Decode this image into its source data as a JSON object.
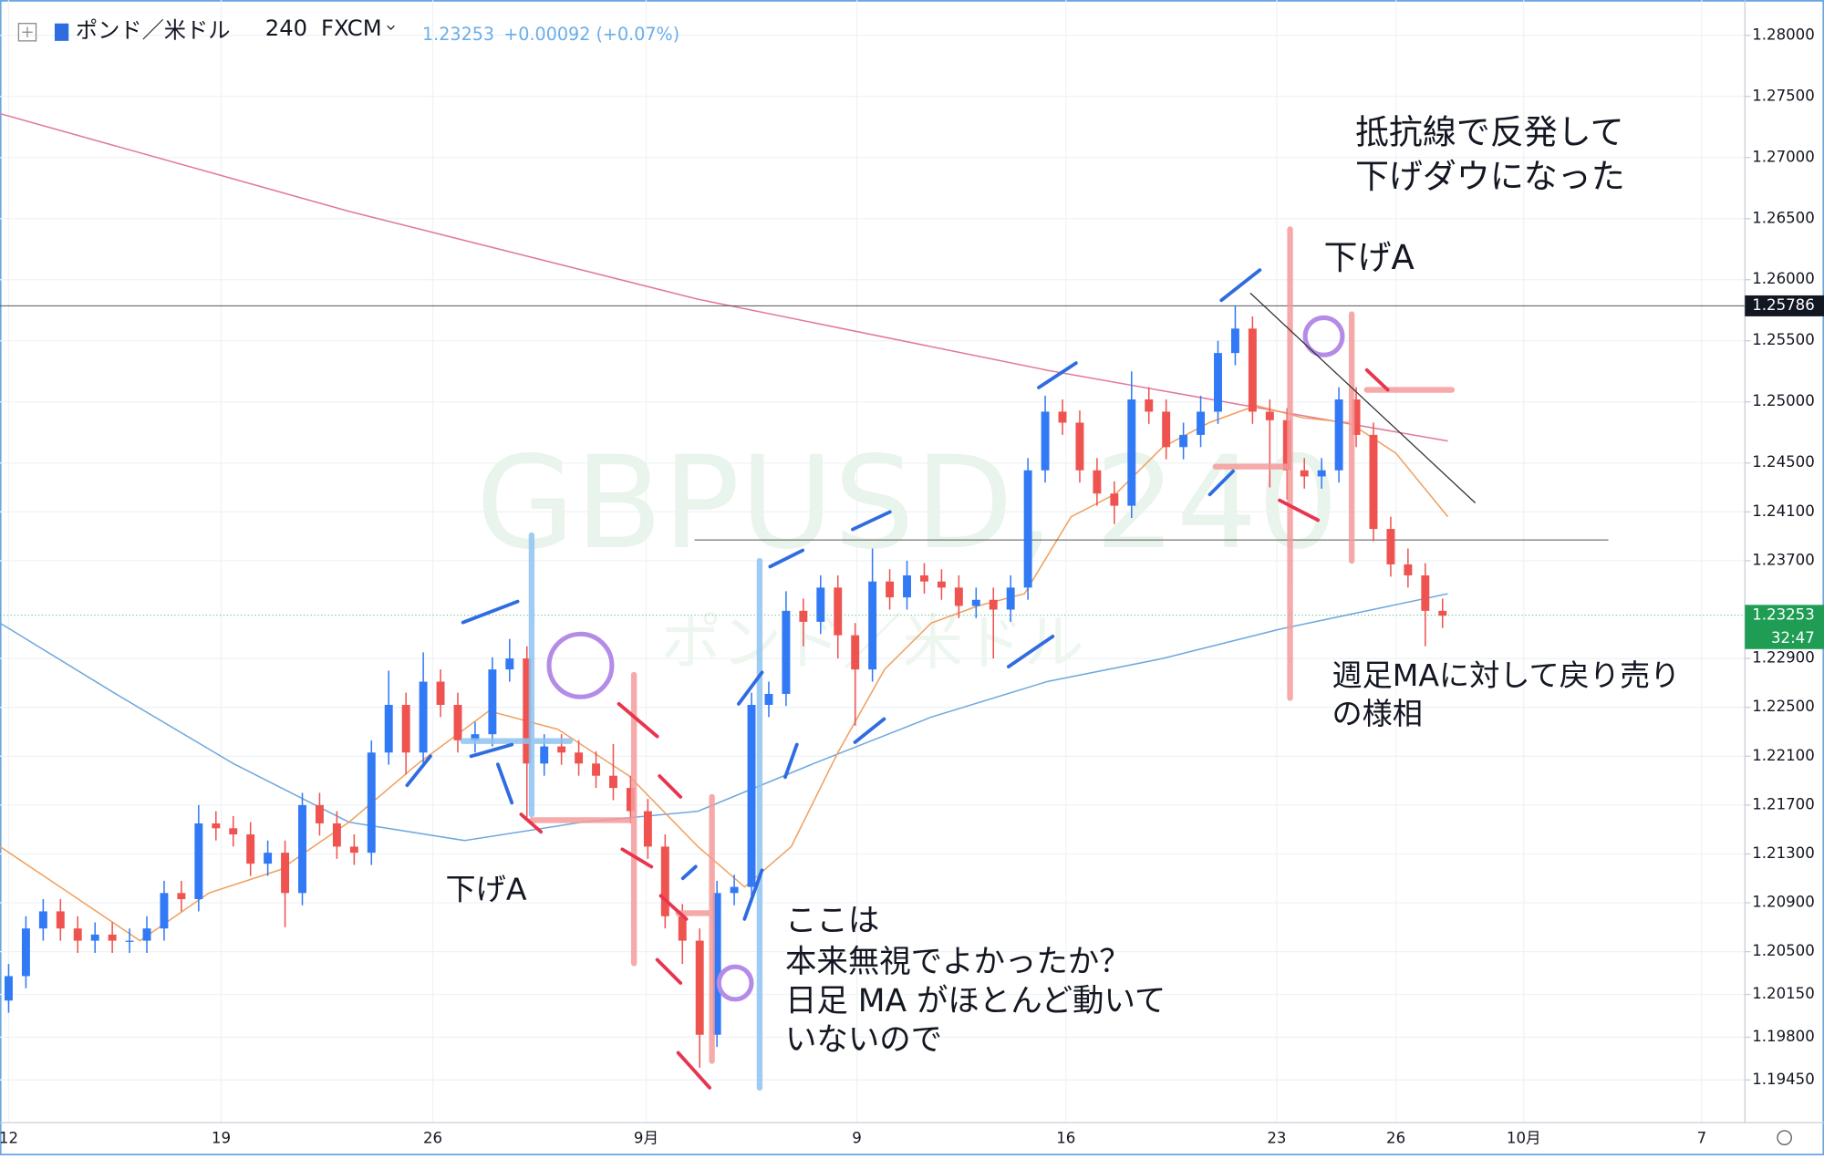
{
  "chart_data": {
    "type": "candlestick",
    "symbol": "ポンド／米ドル",
    "interval": "240",
    "source": "FXCM",
    "last_price": 1.23253,
    "change": "+0.00092 (+0.07%)",
    "countdown": "32:47",
    "watermark": "GBPUSD, 240",
    "ylim": [
      1.19101,
      1.28288
    ],
    "yticks": [
      {
        "value": 1.28,
        "label": "1.28000"
      },
      {
        "value": 1.275,
        "label": "1.27500"
      },
      {
        "value": 1.27,
        "label": "1.27000"
      },
      {
        "value": 1.265,
        "label": "1.26500"
      },
      {
        "value": 1.26,
        "label": "1.26000"
      },
      {
        "value": 1.255,
        "label": "1.25500"
      },
      {
        "value": 1.25,
        "label": "1.25000"
      },
      {
        "value": 1.245,
        "label": "1.24500"
      },
      {
        "value": 1.241,
        "label": "1.24100"
      },
      {
        "value": 1.237,
        "label": "1.23700"
      },
      {
        "value": 1.229,
        "label": "1.22900"
      },
      {
        "value": 1.225,
        "label": "1.22500"
      },
      {
        "value": 1.221,
        "label": "1.22100"
      },
      {
        "value": 1.217,
        "label": "1.21700"
      },
      {
        "value": 1.213,
        "label": "1.21300"
      },
      {
        "value": 1.209,
        "label": "1.20900"
      },
      {
        "value": 1.205,
        "label": "1.20500"
      },
      {
        "value": 1.2015,
        "label": "1.20150"
      },
      {
        "value": 1.198,
        "label": "1.19800"
      },
      {
        "value": 1.1945,
        "label": "1.19450"
      }
    ],
    "xlim": [
      -0.5,
      100.5
    ],
    "xticks": [
      {
        "value": 0,
        "label": "12"
      },
      {
        "value": 12.3,
        "label": "19"
      },
      {
        "value": 24.55,
        "label": "26"
      },
      {
        "value": 36.9,
        "label": "9月"
      },
      {
        "value": 49.1,
        "label": "9"
      },
      {
        "value": 61.2,
        "label": "16"
      },
      {
        "value": 73.4,
        "label": "23"
      },
      {
        "value": 80.3,
        "label": "26"
      },
      {
        "value": 87.7,
        "label": "10月"
      },
      {
        "value": 98,
        "label": "7"
      }
    ],
    "grid": true,
    "up_color": "#3179f5",
    "down_color": "#ef5350",
    "open": [
      1.201,
      1.203,
      1.2069,
      1.2083,
      1.2069,
      1.2059,
      1.2064,
      1.2059,
      1.2059,
      1.2069,
      1.2098,
      1.2093,
      1.2155,
      1.2151,
      1.2146,
      1.2122,
      1.2131,
      1.2098,
      1.217,
      1.2155,
      1.2136,
      1.2131,
      1.2213,
      1.2252,
      1.2213,
      1.2271,
      1.2252,
      1.2223,
      1.2228,
      1.2281,
      1.229,
      1.2204,
      1.2218,
      1.2213,
      1.2204,
      1.2194,
      1.2184,
      1.2165,
      1.2136,
      1.2079,
      1.2059,
      1.1982,
      1.2098,
      1.2103,
      1.2252,
      1.2261,
      1.2329,
      1.232,
      1.2348,
      1.2309,
      1.2281,
      1.2353,
      1.234,
      1.2358,
      1.2353,
      1.2348,
      1.2333,
      1.2338,
      1.233,
      1.2348,
      1.2444,
      1.2492,
      1.2483,
      1.2444,
      1.2425,
      1.2415,
      1.2502,
      1.2492,
      1.2463,
      1.2473,
      1.2492,
      1.254,
      1.256,
      1.2492,
      1.2485,
      1.2444,
      1.2439,
      1.2444,
      1.2502,
      1.2473,
      1.2396,
      1.2367,
      1.2358,
      1.2329
    ],
    "high": [
      1.204,
      1.2079,
      1.2093,
      1.2093,
      1.2079,
      1.2074,
      1.2074,
      1.2069,
      1.2079,
      1.2108,
      1.2108,
      1.217,
      1.2165,
      1.2161,
      1.2156,
      1.2141,
      1.2141,
      1.218,
      1.218,
      1.2165,
      1.2146,
      1.2223,
      1.228,
      1.2262,
      1.2295,
      1.2281,
      1.2262,
      1.2238,
      1.2291,
      1.2306,
      1.23,
      1.2228,
      1.2228,
      1.2223,
      1.2214,
      1.222,
      1.2194,
      1.2175,
      1.2146,
      1.2089,
      1.2069,
      1.2108,
      1.2113,
      1.2262,
      1.2271,
      1.2345,
      1.2339,
      1.2358,
      1.2358,
      1.2319,
      1.238,
      1.2363,
      1.237,
      1.2368,
      1.2363,
      1.2358,
      1.2348,
      1.2348,
      1.2358,
      1.2454,
      1.2505,
      1.2502,
      1.2493,
      1.2454,
      1.2435,
      1.2525,
      1.2512,
      1.2502,
      1.2483,
      1.2505,
      1.255,
      1.2579,
      1.257,
      1.2502,
      1.2495,
      1.2454,
      1.2454,
      1.2512,
      1.2512,
      1.2483,
      1.2406,
      1.238,
      1.2368,
      1.2339
    ],
    "low": [
      1.2,
      1.202,
      1.2059,
      1.2059,
      1.2049,
      1.2049,
      1.2049,
      1.2049,
      1.2049,
      1.2059,
      1.2083,
      1.2083,
      1.2141,
      1.2136,
      1.2112,
      1.2112,
      1.207,
      1.2088,
      1.2145,
      1.2126,
      1.2121,
      1.2121,
      1.2203,
      1.2195,
      1.2203,
      1.2242,
      1.2213,
      1.2213,
      1.2218,
      1.2271,
      1.216,
      1.2194,
      1.2203,
      1.2194,
      1.2184,
      1.2174,
      1.2155,
      1.2126,
      1.2069,
      1.204,
      1.1955,
      1.1972,
      1.2088,
      1.2093,
      1.2242,
      1.2251,
      1.23,
      1.231,
      1.229,
      1.2235,
      1.2271,
      1.233,
      1.233,
      1.2343,
      1.2338,
      1.2323,
      1.2323,
      1.229,
      1.232,
      1.2338,
      1.2434,
      1.2473,
      1.2434,
      1.2415,
      1.24,
      1.2405,
      1.2482,
      1.2453,
      1.2453,
      1.2463,
      1.2482,
      1.253,
      1.2482,
      1.243,
      1.242,
      1.2429,
      1.2429,
      1.2434,
      1.2463,
      1.2386,
      1.2357,
      1.2348,
      1.23,
      1.2315
    ],
    "close": [
      1.203,
      1.2069,
      1.2083,
      1.2069,
      1.2059,
      1.2064,
      1.2059,
      1.2059,
      1.2069,
      1.2098,
      1.2093,
      1.2155,
      1.2151,
      1.2146,
      1.2122,
      1.2131,
      1.2098,
      1.217,
      1.2155,
      1.2136,
      1.2131,
      1.2213,
      1.2252,
      1.2213,
      1.2271,
      1.2252,
      1.2223,
      1.2228,
      1.2281,
      1.229,
      1.2204,
      1.2218,
      1.2213,
      1.2204,
      1.2194,
      1.2184,
      1.2165,
      1.2136,
      1.2079,
      1.2059,
      1.1982,
      1.2098,
      1.2103,
      1.2252,
      1.2261,
      1.2329,
      1.232,
      1.2348,
      1.2309,
      1.2281,
      1.2353,
      1.234,
      1.2358,
      1.2353,
      1.2348,
      1.2333,
      1.2338,
      1.233,
      1.2348,
      1.2444,
      1.2492,
      1.2483,
      1.2444,
      1.2425,
      1.2415,
      1.2502,
      1.2492,
      1.2463,
      1.2473,
      1.2492,
      1.254,
      1.256,
      1.2492,
      1.2485,
      1.2444,
      1.2439,
      1.2444,
      1.2502,
      1.2473,
      1.2396,
      1.2367,
      1.2358,
      1.2329,
      1.2325
    ],
    "moving_averages": [
      {
        "color": "#e07a9a",
        "x": [
          -0.5,
          19.7,
          39.9,
          60.1,
          73.6,
          83.3
        ],
        "values": [
          1.2736,
          1.2656,
          1.2584,
          1.2526,
          1.2492,
          1.2468
        ]
      },
      {
        "color": "#6fa8dc",
        "x": [
          -0.5,
          6.2,
          13.0,
          19.7,
          26.4,
          33.2,
          39.9,
          46.6,
          53.4,
          60.1,
          66.8,
          73.6,
          83.3
        ],
        "values": [
          1.2319,
          1.2261,
          1.2204,
          1.2156,
          1.2141,
          1.2156,
          1.2165,
          1.2204,
          1.2242,
          1.2271,
          1.229,
          1.2314,
          1.2343
        ]
      },
      {
        "color": "#f0a060",
        "x": [
          -0.5,
          3.5,
          7.6,
          11.6,
          15.7,
          19.7,
          23.7,
          27.8,
          31.8,
          35.9,
          39.9,
          42.6,
          45.3,
          48.0,
          50.7,
          53.4,
          56.1,
          58.8,
          61.5,
          64.1,
          66.8,
          69.5,
          72.2,
          74.9,
          77.6,
          80.3,
          83.3
        ],
        "values": [
          1.2136,
          1.2098,
          1.2059,
          1.2098,
          1.2117,
          1.2156,
          1.2204,
          1.2247,
          1.2232,
          1.2194,
          1.2136,
          1.2103,
          1.2136,
          1.2213,
          1.2281,
          1.2319,
          1.2333,
          1.2343,
          1.2406,
          1.2425,
          1.2463,
          1.2483,
          1.2497,
          1.2487,
          1.2483,
          1.2458,
          1.2406
        ]
      }
    ],
    "level": 1.25786,
    "support": {
      "value": 1.2387,
      "x": [
        39.7,
        92.6
      ]
    },
    "notes": [
      "抵抗線で反発して",
      "下げダウになった",
      "下げA",
      "下げA",
      "週足MAに対して戻り売り",
      "の様相",
      "ここは",
      "本来無視でよかったか？",
      "日足 MA がほとんど動いて",
      "いないので"
    ]
  }
}
